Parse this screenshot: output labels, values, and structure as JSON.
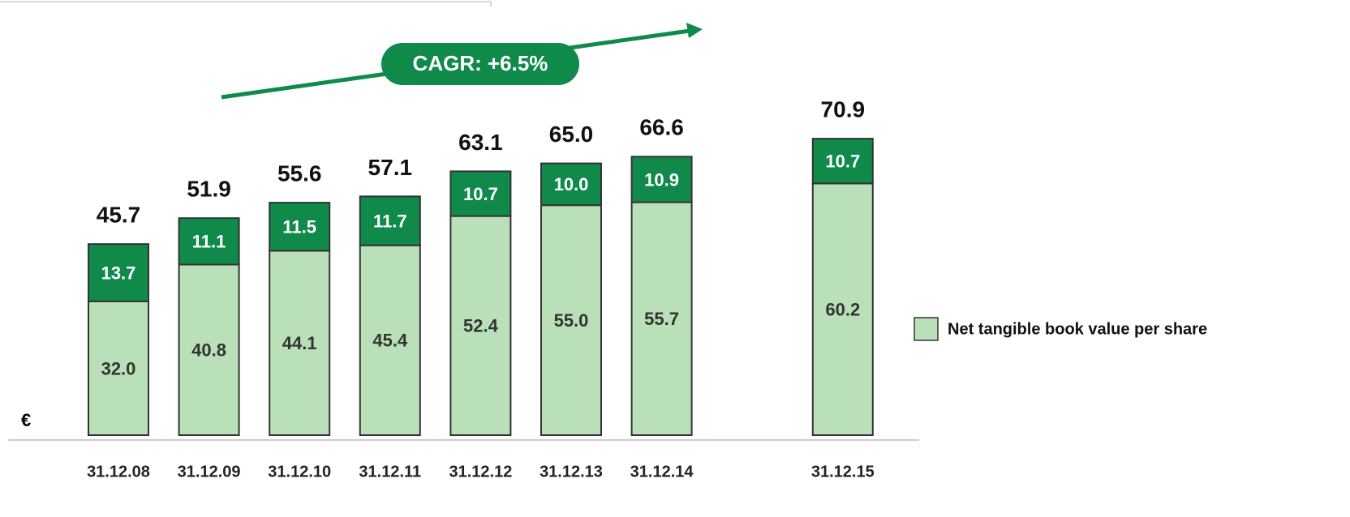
{
  "chart_data": {
    "type": "stacked-bar",
    "annotation": "CAGR: +6.5%",
    "unit": "€",
    "categories": [
      "31.12.08",
      "31.12.09",
      "31.12.10",
      "31.12.11",
      "31.12.12",
      "31.12.13",
      "31.12.14",
      "31.12.15"
    ],
    "series": [
      {
        "name": "Net tangible book value per share",
        "color": "#b9e0b9",
        "values": [
          32.0,
          40.8,
          44.1,
          45.4,
          52.4,
          55.0,
          55.7,
          60.2
        ],
        "value_labels": [
          "32.0",
          "40.8",
          "44.1",
          "45.4",
          "52.4",
          "55.0",
          "55.7",
          "60.2"
        ]
      },
      {
        "color": "#0f8a4b",
        "values": [
          13.7,
          11.1,
          11.5,
          11.7,
          10.7,
          10.0,
          10.9,
          10.7
        ],
        "value_labels": [
          "13.7",
          "11.1",
          "11.5",
          "11.7",
          "10.7",
          "10.0",
          "10.9",
          "10.7"
        ]
      }
    ],
    "total_labels": [
      "45.7",
      "51.9",
      "55.6",
      "57.1",
      "63.1",
      "65.0",
      "66.6",
      "70.9"
    ],
    "ylim": [
      0,
      100
    ]
  }
}
